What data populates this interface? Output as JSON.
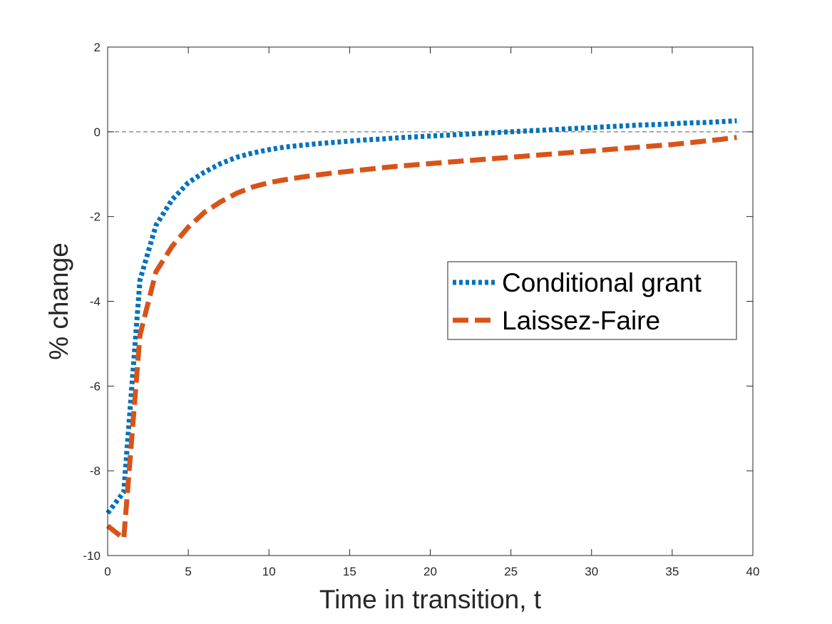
{
  "chart_data": {
    "type": "line",
    "title": "",
    "xlabel": "Time in transition, t",
    "ylabel": "% change",
    "xlim": [
      0,
      40
    ],
    "ylim": [
      -10,
      2
    ],
    "xticks": [
      0,
      5,
      10,
      15,
      20,
      25,
      30,
      35,
      40
    ],
    "yticks": [
      -10,
      -8,
      -6,
      -4,
      -2,
      0,
      2
    ],
    "grid": false,
    "legend_position": "right",
    "reference_line": {
      "y": 0,
      "style": "dashed",
      "color": "#666666"
    },
    "x": [
      0,
      1,
      2,
      3,
      4,
      5,
      6,
      7,
      8,
      9,
      10,
      11,
      12,
      13,
      14,
      15,
      16,
      17,
      18,
      19,
      20,
      21,
      22,
      23,
      24,
      25,
      26,
      27,
      28,
      29,
      30,
      31,
      32,
      33,
      34,
      35,
      36,
      37,
      38,
      39
    ],
    "series": [
      {
        "name": "Conditional grant",
        "color": "#0072BD",
        "style": "dotted",
        "values": [
          -9.0,
          -8.5,
          -3.5,
          -2.2,
          -1.6,
          -1.2,
          -0.95,
          -0.75,
          -0.6,
          -0.5,
          -0.42,
          -0.36,
          -0.32,
          -0.28,
          -0.25,
          -0.22,
          -0.19,
          -0.17,
          -0.14,
          -0.12,
          -0.1,
          -0.08,
          -0.06,
          -0.04,
          -0.02,
          0.0,
          0.02,
          0.04,
          0.06,
          0.08,
          0.1,
          0.12,
          0.14,
          0.16,
          0.17,
          0.19,
          0.21,
          0.22,
          0.24,
          0.26
        ]
      },
      {
        "name": "Laissez-Faire",
        "color": "#D95319",
        "style": "dashed",
        "values": [
          -9.3,
          -9.6,
          -4.8,
          -3.3,
          -2.7,
          -2.25,
          -1.9,
          -1.65,
          -1.45,
          -1.3,
          -1.2,
          -1.13,
          -1.07,
          -1.02,
          -0.97,
          -0.93,
          -0.89,
          -0.85,
          -0.81,
          -0.78,
          -0.75,
          -0.72,
          -0.69,
          -0.66,
          -0.63,
          -0.6,
          -0.57,
          -0.54,
          -0.51,
          -0.48,
          -0.45,
          -0.42,
          -0.39,
          -0.36,
          -0.33,
          -0.3,
          -0.26,
          -0.22,
          -0.18,
          -0.13
        ]
      }
    ]
  }
}
